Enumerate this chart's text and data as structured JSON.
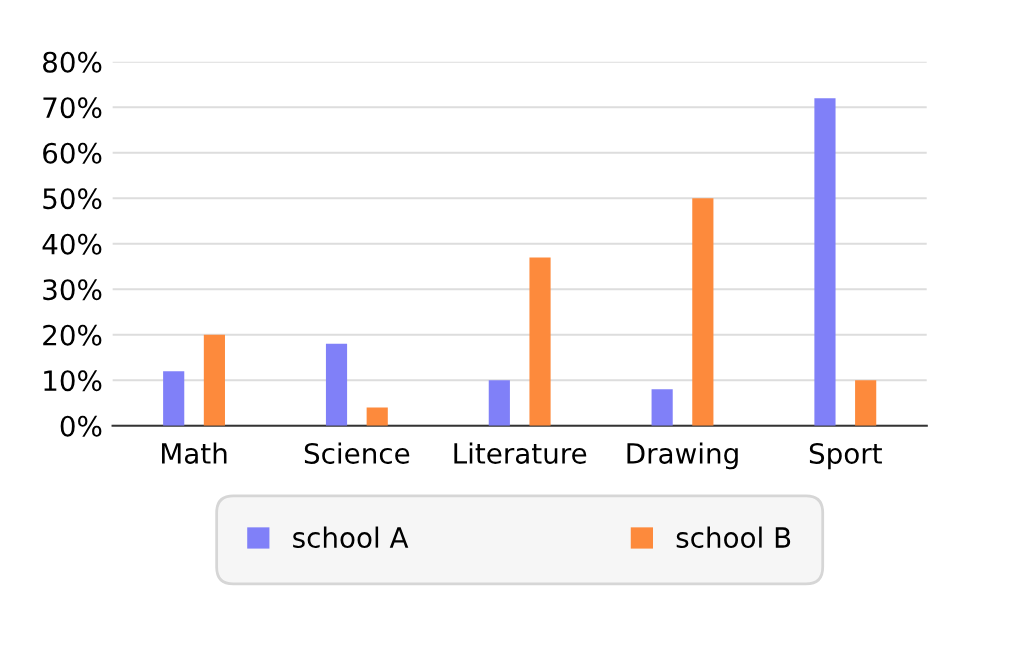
{
  "chart_data": {
    "type": "bar",
    "categories": [
      "Math",
      "Science",
      "Literature",
      "Drawing",
      "Sport"
    ],
    "series": [
      {
        "name": "school A",
        "color": "#8080f8",
        "values": [
          12,
          18,
          10,
          8,
          72
        ]
      },
      {
        "name": "school B",
        "color": "#fd8a3c",
        "values": [
          20,
          4,
          37,
          50,
          10
        ]
      }
    ],
    "ylim": [
      0,
      80
    ],
    "yticks": [
      {
        "value": 0,
        "label": "0%"
      },
      {
        "value": 10,
        "label": "10%"
      },
      {
        "value": 20,
        "label": "20%"
      },
      {
        "value": 30,
        "label": "30%"
      },
      {
        "value": 40,
        "label": "40%"
      },
      {
        "value": 50,
        "label": "50%"
      },
      {
        "value": 60,
        "label": "60%"
      },
      {
        "value": 70,
        "label": "70%"
      },
      {
        "value": 80,
        "label": "80%"
      }
    ],
    "grid": "y",
    "legend": "bottom"
  }
}
